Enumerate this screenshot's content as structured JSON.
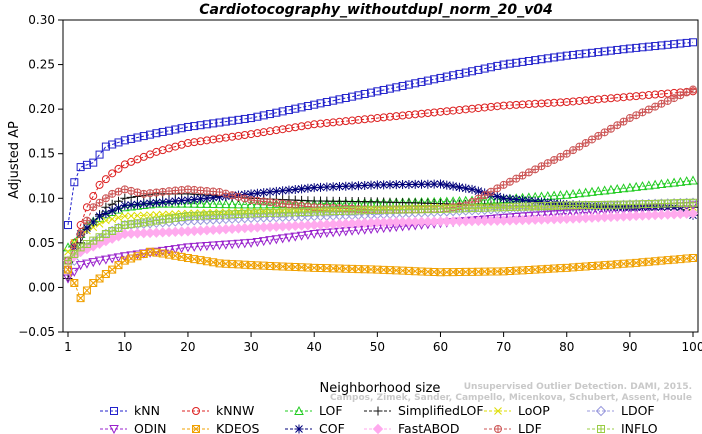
{
  "chart_data": {
    "type": "line",
    "title": "Cardiotocography_withoutdupl_norm_20_v04",
    "xlabel": "Neighborhood size",
    "ylabel": "Adjusted AP",
    "xlim": [
      1,
      100
    ],
    "ylim": [
      -0.05,
      0.3
    ],
    "xticks": [
      1,
      10,
      20,
      30,
      40,
      50,
      60,
      70,
      80,
      90,
      100
    ],
    "yticks": [
      -0.05,
      0.0,
      0.05,
      0.1,
      0.15,
      0.2,
      0.25,
      0.3
    ],
    "ytick_labels": [
      "−0.05",
      "0.00",
      "0.05",
      "0.10",
      "0.15",
      "0.20",
      "0.25",
      "0.30"
    ],
    "grid": false,
    "legend_position": "bottom",
    "series": [
      {
        "name": "kNN",
        "color": "#2222cc",
        "marker": "square",
        "keys": [
          [
            1,
            0.07
          ],
          [
            2,
            0.118
          ],
          [
            3,
            0.135
          ],
          [
            5,
            0.14
          ],
          [
            7,
            0.158
          ],
          [
            10,
            0.165
          ],
          [
            15,
            0.173
          ],
          [
            20,
            0.18
          ],
          [
            30,
            0.19
          ],
          [
            40,
            0.205
          ],
          [
            50,
            0.22
          ],
          [
            60,
            0.235
          ],
          [
            70,
            0.25
          ],
          [
            80,
            0.26
          ],
          [
            90,
            0.268
          ],
          [
            100,
            0.275
          ]
        ]
      },
      {
        "name": "kNNW",
        "color": "#dd2222",
        "marker": "circle",
        "keys": [
          [
            1,
            0.02
          ],
          [
            2,
            0.05
          ],
          [
            4,
            0.09
          ],
          [
            6,
            0.115
          ],
          [
            8,
            0.128
          ],
          [
            10,
            0.138
          ],
          [
            15,
            0.152
          ],
          [
            20,
            0.162
          ],
          [
            30,
            0.172
          ],
          [
            40,
            0.183
          ],
          [
            50,
            0.19
          ],
          [
            60,
            0.197
          ],
          [
            70,
            0.204
          ],
          [
            80,
            0.208
          ],
          [
            90,
            0.214
          ],
          [
            100,
            0.22
          ]
        ]
      },
      {
        "name": "LOF",
        "color": "#22cc22",
        "marker": "triangle-up",
        "keys": [
          [
            1,
            0.045
          ],
          [
            2,
            0.05
          ],
          [
            4,
            0.07
          ],
          [
            7,
            0.082
          ],
          [
            10,
            0.09
          ],
          [
            15,
            0.094
          ],
          [
            20,
            0.094
          ],
          [
            30,
            0.093
          ],
          [
            40,
            0.094
          ],
          [
            50,
            0.095
          ],
          [
            60,
            0.096
          ],
          [
            70,
            0.099
          ],
          [
            80,
            0.104
          ],
          [
            90,
            0.112
          ],
          [
            100,
            0.12
          ]
        ]
      },
      {
        "name": "SimplifiedLOF",
        "color": "#111111",
        "marker": "plus",
        "keys": [
          [
            1,
            0.01
          ],
          [
            2,
            0.035
          ],
          [
            4,
            0.065
          ],
          [
            7,
            0.09
          ],
          [
            10,
            0.1
          ],
          [
            15,
            0.105
          ],
          [
            20,
            0.105
          ],
          [
            30,
            0.1
          ],
          [
            40,
            0.097
          ],
          [
            50,
            0.096
          ],
          [
            60,
            0.094
          ],
          [
            70,
            0.092
          ],
          [
            80,
            0.091
          ],
          [
            90,
            0.091
          ],
          [
            100,
            0.09
          ]
        ]
      },
      {
        "name": "LoOP",
        "color": "#dddd00",
        "marker": "x",
        "keys": [
          [
            1,
            0.04
          ],
          [
            3,
            0.06
          ],
          [
            7,
            0.075
          ],
          [
            10,
            0.08
          ],
          [
            20,
            0.083
          ],
          [
            30,
            0.085
          ],
          [
            40,
            0.086
          ],
          [
            50,
            0.088
          ],
          [
            60,
            0.09
          ],
          [
            70,
            0.09
          ],
          [
            80,
            0.09
          ],
          [
            90,
            0.09
          ],
          [
            100,
            0.09
          ]
        ]
      },
      {
        "name": "LDOF",
        "color": "#9999dd",
        "marker": "diamond",
        "keys": [
          [
            1,
            0.02
          ],
          [
            3,
            0.04
          ],
          [
            7,
            0.06
          ],
          [
            10,
            0.07
          ],
          [
            20,
            0.075
          ],
          [
            30,
            0.078
          ],
          [
            40,
            0.08
          ],
          [
            50,
            0.082
          ],
          [
            60,
            0.085
          ],
          [
            70,
            0.088
          ],
          [
            80,
            0.09
          ],
          [
            90,
            0.093
          ],
          [
            100,
            0.095
          ]
        ]
      },
      {
        "name": "ODIN",
        "color": "#9922cc",
        "marker": "triangle-down",
        "keys": [
          [
            1,
            0.01
          ],
          [
            3,
            0.025
          ],
          [
            6,
            0.03
          ],
          [
            10,
            0.035
          ],
          [
            15,
            0.04
          ],
          [
            20,
            0.045
          ],
          [
            30,
            0.05
          ],
          [
            40,
            0.06
          ],
          [
            50,
            0.066
          ],
          [
            60,
            0.072
          ],
          [
            70,
            0.078
          ],
          [
            80,
            0.083
          ],
          [
            90,
            0.087
          ],
          [
            100,
            0.092
          ]
        ]
      },
      {
        "name": "KDEOS",
        "color": "#f0a000",
        "marker": "crossed-square",
        "keys": [
          [
            1,
            0.02
          ],
          [
            2,
            0.005
          ],
          [
            3,
            -0.012
          ],
          [
            5,
            0.005
          ],
          [
            8,
            0.02
          ],
          [
            10,
            0.03
          ],
          [
            14,
            0.04
          ],
          [
            16,
            0.038
          ],
          [
            20,
            0.033
          ],
          [
            25,
            0.027
          ],
          [
            30,
            0.025
          ],
          [
            40,
            0.022
          ],
          [
            50,
            0.02
          ],
          [
            60,
            0.017
          ],
          [
            70,
            0.018
          ],
          [
            80,
            0.022
          ],
          [
            90,
            0.027
          ],
          [
            100,
            0.033
          ]
        ]
      },
      {
        "name": "COF",
        "color": "#00007a",
        "marker": "star",
        "keys": [
          [
            1,
            0.03
          ],
          [
            3,
            0.06
          ],
          [
            6,
            0.08
          ],
          [
            10,
            0.092
          ],
          [
            20,
            0.098
          ],
          [
            30,
            0.105
          ],
          [
            40,
            0.112
          ],
          [
            50,
            0.115
          ],
          [
            60,
            0.116
          ],
          [
            65,
            0.11
          ],
          [
            70,
            0.1
          ],
          [
            80,
            0.093
          ],
          [
            90,
            0.09
          ],
          [
            97,
            0.09
          ],
          [
            100,
            0.081
          ]
        ]
      },
      {
        "name": "FastABOD",
        "color": "#ffaaee",
        "marker": "diamond-filled",
        "keys": [
          [
            1,
            0.03
          ],
          [
            3,
            0.04
          ],
          [
            7,
            0.052
          ],
          [
            10,
            0.06
          ],
          [
            20,
            0.063
          ],
          [
            30,
            0.067
          ],
          [
            40,
            0.07
          ],
          [
            50,
            0.073
          ],
          [
            60,
            0.074
          ],
          [
            70,
            0.075
          ],
          [
            80,
            0.077
          ],
          [
            90,
            0.08
          ],
          [
            100,
            0.083
          ]
        ]
      },
      {
        "name": "LDF",
        "color": "#cc5555",
        "marker": "circle-plus",
        "keys": [
          [
            1,
            0.03
          ],
          [
            3,
            0.06
          ],
          [
            5,
            0.09
          ],
          [
            8,
            0.105
          ],
          [
            10,
            0.11
          ],
          [
            13,
            0.105
          ],
          [
            17,
            0.108
          ],
          [
            20,
            0.11
          ],
          [
            25,
            0.107
          ],
          [
            30,
            0.098
          ],
          [
            40,
            0.09
          ],
          [
            50,
            0.087
          ],
          [
            60,
            0.088
          ],
          [
            64,
            0.092
          ],
          [
            70,
            0.115
          ],
          [
            80,
            0.15
          ],
          [
            90,
            0.19
          ],
          [
            100,
            0.222
          ]
        ]
      },
      {
        "name": "INFLO",
        "color": "#99cc44",
        "marker": "crossed-box",
        "keys": [
          [
            1,
            0.03
          ],
          [
            3,
            0.045
          ],
          [
            7,
            0.06
          ],
          [
            10,
            0.07
          ],
          [
            20,
            0.08
          ],
          [
            30,
            0.083
          ],
          [
            40,
            0.085
          ],
          [
            50,
            0.087
          ],
          [
            60,
            0.088
          ],
          [
            70,
            0.09
          ],
          [
            80,
            0.092
          ],
          [
            90,
            0.093
          ],
          [
            100,
            0.095
          ]
        ]
      }
    ]
  },
  "watermark": {
    "line1": "Unsupervised Outlier Detection. DAMI, 2015.",
    "line2": "Campos, Zimek, Sander, Campello, Micenkova, Schubert, Assent, Houle"
  }
}
